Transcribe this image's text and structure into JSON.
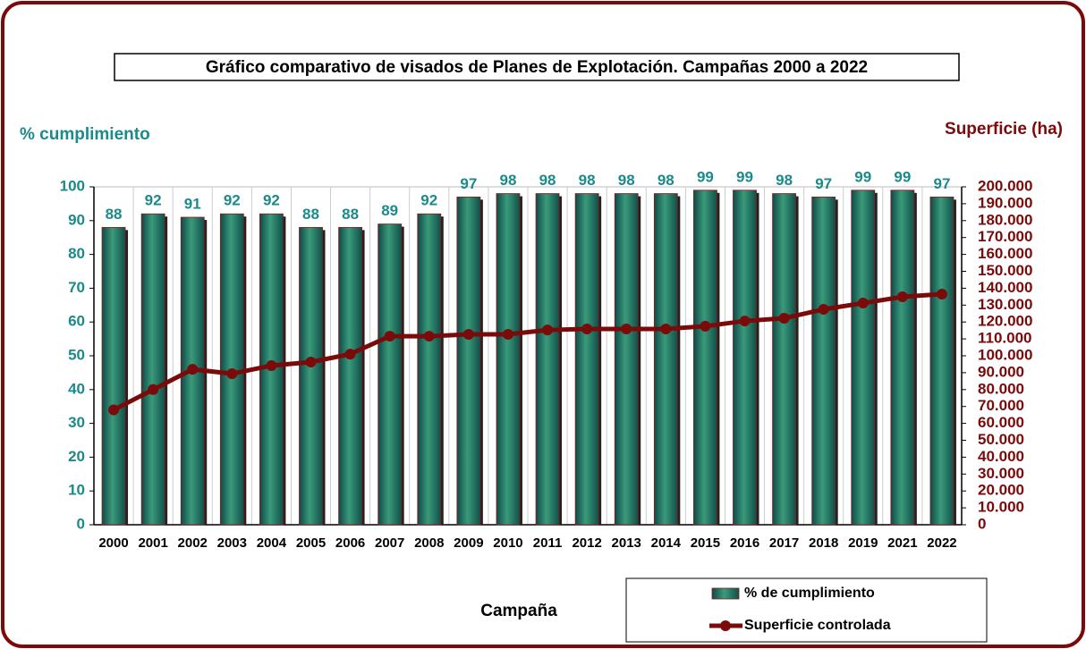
{
  "chart_data": {
    "type": "bar_line",
    "title": "Gráfico comparativo de visados de Planes de Explotación. Campañas 2000 a 2022",
    "ylabel": "% cumplimiento",
    "y2label": "Superficie (ha)",
    "xlabel": "Campaña",
    "categories": [
      "2000",
      "2001",
      "2002",
      "2003",
      "2004",
      "2005",
      "2006",
      "2007",
      "2008",
      "2009",
      "2010",
      "2011",
      "2012",
      "2013",
      "2014",
      "2015",
      "2016",
      "2017",
      "2018",
      "2019",
      "2021",
      "2022"
    ],
    "series": [
      {
        "name": "% de cumplimiento",
        "type": "bar",
        "color": "#1f7a6a",
        "values": [
          88,
          92,
          91,
          92,
          92,
          88,
          88,
          89,
          92,
          97,
          98,
          98,
          98,
          98,
          98,
          99,
          99,
          98,
          97,
          99,
          99,
          97
        ]
      },
      {
        "name": "Superficie controlada",
        "type": "line",
        "axis": "y2",
        "color": "#7b0a0a",
        "values": [
          68000,
          80000,
          92000,
          89400,
          94200,
          96300,
          101000,
          111600,
          111600,
          112700,
          112700,
          115300,
          115900,
          115900,
          115900,
          117500,
          120600,
          122200,
          127500,
          131200,
          134900,
          136500
        ]
      }
    ],
    "ylim": [
      0,
      100
    ],
    "yticks": [
      0,
      10,
      20,
      30,
      40,
      50,
      60,
      70,
      80,
      90,
      100
    ],
    "y2lim": [
      0,
      200000
    ],
    "y2ticks": [
      0,
      {
        "value": 10000,
        "label": "10.000"
      },
      {
        "value": 20000,
        "label": "20.000"
      },
      {
        "value": 30000,
        "label": "30.000"
      },
      {
        "value": 40000,
        "label": "40.000"
      },
      {
        "value": 50000,
        "label": "50.000"
      },
      {
        "value": 60000,
        "label": "60.000"
      },
      {
        "value": 70000,
        "label": "70.000"
      },
      {
        "value": 80000,
        "label": "80.000"
      },
      {
        "value": 90000,
        "label": "90.000"
      },
      {
        "value": 100000,
        "label": "100.000"
      },
      {
        "value": 110000,
        "label": "110.000"
      },
      {
        "value": 120000,
        "label": "120.000"
      },
      {
        "value": 130000,
        "label": "130.000"
      },
      {
        "value": 140000,
        "label": "140.000"
      },
      {
        "value": 150000,
        "label": "150.000"
      },
      {
        "value": 160000,
        "label": "160.000"
      },
      {
        "value": 170000,
        "label": "170.000"
      },
      {
        "value": 180000,
        "label": "180.000"
      },
      {
        "value": 190000,
        "label": "190.000"
      },
      {
        "value": 200000,
        "label": "200.000"
      }
    ],
    "grid": true
  }
}
